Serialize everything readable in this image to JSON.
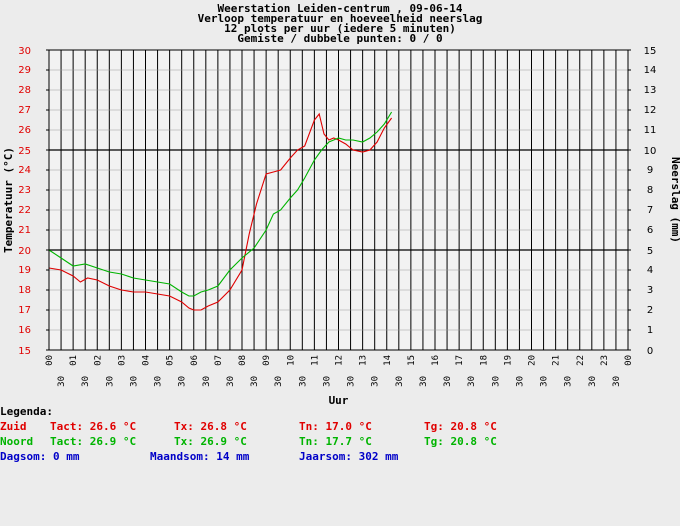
{
  "chart_data": {
    "type": "line",
    "title_lines": [
      "Weerstation Leiden-centrum , 09-06-14",
      "Verloop temperatuur en hoeveelheid neerslag",
      "12 plots per uur (iedere 5 minuten)",
      "Gemiste / dubbele punten: 0 / 0"
    ],
    "xlabel": "Uur",
    "ylabel_left": "Temperatuur (°C)",
    "ylabel_right": "Neerslag (mm)",
    "ylim_left": [
      15,
      30
    ],
    "ylim_right": [
      0,
      15
    ],
    "xlim": [
      0,
      24
    ],
    "y_ticks_left": [
      "15",
      "16",
      "17",
      "18",
      "19",
      "20",
      "21",
      "22",
      "23",
      "24",
      "25",
      "26",
      "27",
      "28",
      "29",
      "30"
    ],
    "y_ticks_right": [
      "0",
      "1",
      "2",
      "3",
      "4",
      "5",
      "6",
      "7",
      "8",
      "9",
      "10",
      "11",
      "12",
      "13",
      "14",
      "15"
    ],
    "x_hour_labels": [
      "00",
      "01",
      "02",
      "03",
      "04",
      "05",
      "06",
      "07",
      "08",
      "09",
      "10",
      "11",
      "12",
      "13",
      "14",
      "15",
      "16",
      "17",
      "18",
      "19",
      "20",
      "21",
      "22",
      "23",
      "00"
    ],
    "x_half_label": "30",
    "grid": true,
    "colors": {
      "zuid": "#e00000",
      "noord": "#00b400",
      "left_axis": "#e00000",
      "right_axis": "#000000",
      "background": "#f2f2f2"
    },
    "series": [
      {
        "name": "Zuid",
        "color": "#e00000",
        "x": [
          0,
          0.5,
          1,
          1.3,
          1.6,
          2,
          2.5,
          3,
          3.5,
          4,
          4.5,
          5,
          5.5,
          5.8,
          6,
          6.3,
          6.6,
          7,
          7.5,
          8,
          8.3,
          8.6,
          9,
          9.3,
          9.6,
          10,
          10.3,
          10.6,
          11,
          11.2,
          11.4,
          11.6,
          11.8,
          12,
          12.3,
          12.6,
          13,
          13.3,
          13.6,
          13.9,
          14.2
        ],
        "y": [
          19.1,
          19,
          18.7,
          18.4,
          18.6,
          18.5,
          18.2,
          18,
          17.9,
          17.9,
          17.8,
          17.7,
          17.4,
          17.1,
          17,
          17,
          17.2,
          17.4,
          18,
          19,
          20.8,
          22.3,
          23.8,
          23.9,
          24,
          24.6,
          25,
          25.2,
          26.5,
          26.8,
          25.8,
          25.5,
          25.6,
          25.5,
          25.3,
          25,
          24.9,
          25,
          25.4,
          26.1,
          26.6
        ]
      },
      {
        "name": "Noord",
        "color": "#00b400",
        "x": [
          0,
          0.5,
          1,
          1.5,
          2,
          2.5,
          3,
          3.5,
          4,
          4.5,
          5,
          5.5,
          5.8,
          6,
          6.3,
          6.6,
          7,
          7.5,
          8,
          8.5,
          9,
          9.3,
          9.6,
          10,
          10.3,
          10.6,
          11,
          11.3,
          11.6,
          11.8,
          12,
          12.3,
          12.6,
          13,
          13.3,
          13.6,
          13.9,
          14.2
        ],
        "y": [
          20,
          19.6,
          19.2,
          19.3,
          19.1,
          18.9,
          18.8,
          18.6,
          18.5,
          18.4,
          18.3,
          17.9,
          17.7,
          17.7,
          17.9,
          18,
          18.2,
          19,
          19.6,
          20.1,
          21,
          21.8,
          22,
          22.6,
          23,
          23.6,
          24.5,
          25,
          25.4,
          25.5,
          25.6,
          25.5,
          25.5,
          25.4,
          25.6,
          25.9,
          26.3,
          26.9
        ]
      }
    ]
  },
  "legend": {
    "heading": "Legenda:",
    "rows": [
      {
        "station": "Zuid",
        "tact": "Tact: 26.6 °C",
        "tx": "Tx: 26.8 °C",
        "tn": "Tn: 17.0 °C",
        "tg": "Tg: 20.8 °C"
      },
      {
        "station": "Noord",
        "tact": "Tact: 26.9 °C",
        "tx": "Tx: 26.9 °C",
        "tn": "Tn: 17.7 °C",
        "tg": "Tg: 20.8 °C"
      }
    ],
    "rain": {
      "dag": "Dagsom: 0 mm",
      "maand": "Maandsom: 14 mm",
      "jaar": "Jaarsom: 302 mm"
    }
  }
}
